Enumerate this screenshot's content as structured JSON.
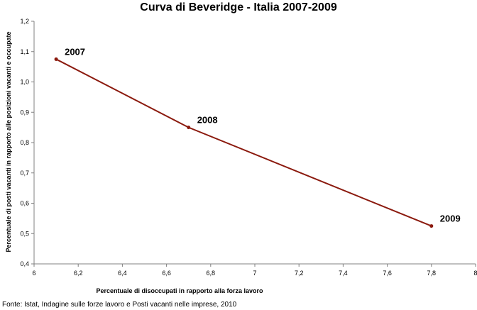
{
  "chart_data": {
    "type": "line",
    "title": "Curva di Beveridge - Italia 2007-2009",
    "xlabel": "Percentuale di disoccupati in rapporto alla forza lavoro",
    "ylabel": "Percentuale di posti vacanti in rapporto alle posizioni vacanti e occupate",
    "xlim": [
      6,
      8
    ],
    "ylim": [
      0.4,
      1.2
    ],
    "x_ticks": [
      "6",
      "6,2",
      "6,4",
      "6,6",
      "6,8",
      "7",
      "7,2",
      "7,4",
      "7,6",
      "7,8",
      "8"
    ],
    "y_ticks": [
      "0,4",
      "0,5",
      "0,6",
      "0,7",
      "0,8",
      "0,9",
      "1,0",
      "1,1",
      "1,2"
    ],
    "grid": false,
    "series": [
      {
        "color": "#8b1a0e",
        "points": [
          {
            "x": 6.1,
            "y": 1.075,
            "label": "2007"
          },
          {
            "x": 6.7,
            "y": 0.85,
            "label": "2008"
          },
          {
            "x": 7.8,
            "y": 0.525,
            "label": "2009"
          }
        ]
      }
    ]
  },
  "source": "Fonte: Istat, Indagine sulle forze lavoro e Posti vacanti nelle imprese, 2010"
}
